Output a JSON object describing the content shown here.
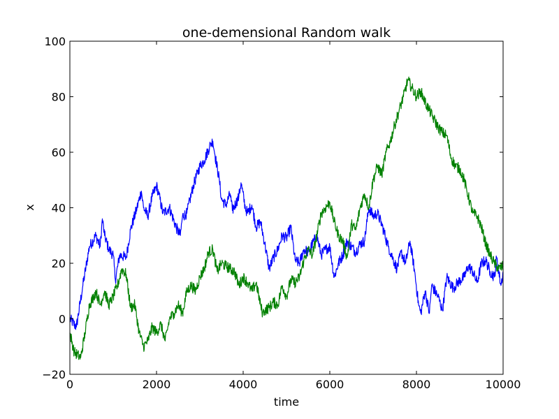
{
  "chart_data": {
    "type": "line",
    "title": "one-demensional Random walk",
    "xlabel": "time",
    "ylabel": "x",
    "xlim": [
      0,
      10000
    ],
    "ylim": [
      -20,
      100
    ],
    "xticks": [
      0,
      2000,
      4000,
      6000,
      8000,
      10000
    ],
    "xtick_labels": [
      "0",
      "2000",
      "4000",
      "6000",
      "8000",
      "10000"
    ],
    "yticks": [
      -20,
      0,
      20,
      40,
      60,
      80,
      100
    ],
    "ytick_labels": [
      "−20",
      "0",
      "20",
      "40",
      "60",
      "80",
      "100"
    ],
    "grid": false,
    "legend": "none",
    "noise_amplitude": 2.0,
    "series": [
      {
        "color": "#0000ff",
        "x": [
          0,
          150,
          300,
          450,
          600,
          700,
          750,
          800,
          900,
          1000,
          1050,
          1150,
          1300,
          1400,
          1550,
          1650,
          1700,
          1800,
          1900,
          2000,
          2050,
          2150,
          2300,
          2450,
          2550,
          2600,
          2700,
          2850,
          3000,
          3100,
          3250,
          3300,
          3350,
          3450,
          3500,
          3600,
          3700,
          3750,
          3900,
          3950,
          4050,
          4100,
          4200,
          4300,
          4400,
          4500,
          4600,
          4700,
          4800,
          4900,
          5000,
          5100,
          5200,
          5300,
          5400,
          5500,
          5600,
          5700,
          5800,
          5900,
          6000,
          6100,
          6200,
          6300,
          6400,
          6500,
          6600,
          6700,
          6800,
          6900,
          7000,
          7100,
          7200,
          7350,
          7450,
          7550,
          7650,
          7750,
          7850,
          7950,
          8050,
          8100,
          8200,
          8300,
          8350,
          8500,
          8600,
          8700,
          8850,
          8950,
          9100,
          9200,
          9300,
          9400,
          9500,
          9600,
          9700,
          9800,
          9850,
          9950,
          10000
        ],
        "y": [
          0,
          -3,
          12,
          26,
          30,
          26,
          36,
          30,
          25,
          23,
          14,
          23,
          22,
          32,
          40,
          46,
          40,
          37,
          44,
          48,
          45,
          38,
          40,
          33,
          30,
          37,
          38,
          48,
          55,
          57,
          63,
          64,
          59,
          50,
          43,
          41,
          45,
          39,
          44,
          49,
          40,
          38,
          41,
          33,
          35,
          27,
          18,
          22,
          25,
          30,
          29,
          33,
          21,
          20,
          25,
          24,
          27,
          30,
          23,
          25,
          26,
          15,
          20,
          23,
          28,
          26,
          24,
          27,
          28,
          40,
          37,
          38,
          34,
          26,
          22,
          18,
          24,
          20,
          28,
          18,
          5,
          2,
          10,
          2,
          12,
          8,
          3,
          15,
          11,
          13,
          15,
          19,
          17,
          13,
          20,
          21,
          17,
          15,
          22,
          12,
          17
        ]
      },
      {
        "color": "#008000",
        "x": [
          0,
          100,
          250,
          350,
          450,
          550,
          600,
          700,
          800,
          900,
          1000,
          1100,
          1200,
          1300,
          1400,
          1500,
          1600,
          1700,
          1800,
          1900,
          2000,
          2100,
          2200,
          2300,
          2400,
          2500,
          2600,
          2700,
          2800,
          2900,
          3000,
          3100,
          3200,
          3300,
          3400,
          3500,
          3600,
          3700,
          3800,
          3900,
          4000,
          4100,
          4200,
          4300,
          4400,
          4450,
          4500,
          4600,
          4700,
          4800,
          4900,
          5000,
          5100,
          5200,
          5300,
          5400,
          5500,
          5600,
          5700,
          5800,
          5900,
          6000,
          6100,
          6200,
          6300,
          6400,
          6500,
          6600,
          6700,
          6800,
          6900,
          7000,
          7100,
          7200,
          7300,
          7400,
          7500,
          7600,
          7700,
          7800,
          7900,
          8000,
          8100,
          8200,
          8300,
          8400,
          8500,
          8600,
          8700,
          8800,
          8900,
          9000,
          9100,
          9200,
          9300,
          9400,
          9500,
          9600,
          9700,
          9800,
          9900,
          10000
        ],
        "y": [
          -5,
          -12,
          -14,
          -5,
          5,
          8,
          10,
          5,
          10,
          5,
          8,
          12,
          18,
          16,
          4,
          5,
          -5,
          -10,
          -8,
          -3,
          -5,
          -2,
          -8,
          0,
          2,
          5,
          2,
          10,
          12,
          10,
          15,
          18,
          24,
          25,
          17,
          20,
          19,
          18,
          17,
          12,
          15,
          13,
          10,
          13,
          5,
          2,
          3,
          4,
          6,
          5,
          12,
          8,
          14,
          13,
          15,
          21,
          25,
          23,
          30,
          38,
          40,
          42,
          35,
          30,
          28,
          22,
          34,
          32,
          40,
          45,
          40,
          50,
          55,
          52,
          60,
          64,
          70,
          75,
          80,
          86,
          83,
          80,
          82,
          78,
          75,
          72,
          69,
          67,
          66,
          58,
          55,
          54,
          50,
          44,
          38,
          37,
          33,
          27,
          23,
          20,
          18,
          19
        ]
      }
    ]
  }
}
